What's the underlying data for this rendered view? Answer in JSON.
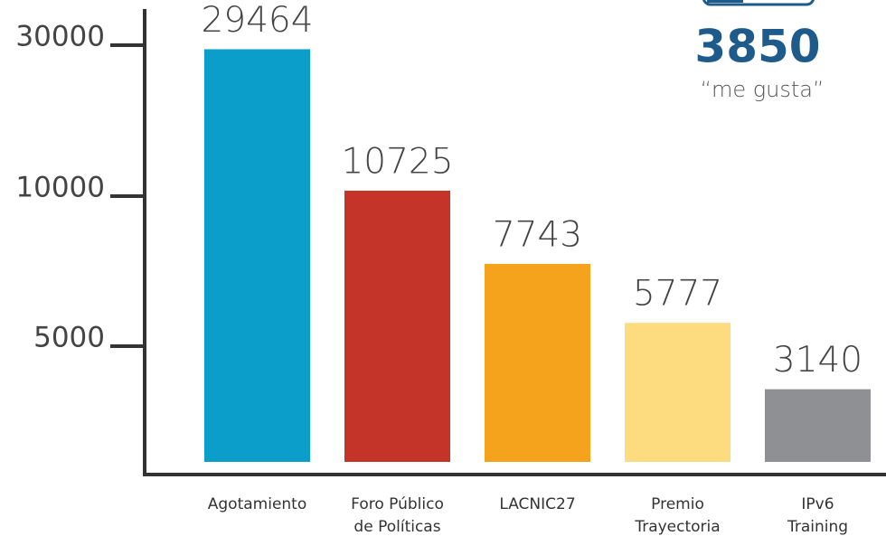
{
  "chart_data": {
    "type": "bar",
    "categories": [
      [
        "Agotamiento"
      ],
      [
        "Foro Público",
        "de Políticas"
      ],
      [
        "LACNIC27"
      ],
      [
        "Premio",
        "Trayectoria"
      ],
      [
        "IPv6",
        "Training"
      ]
    ],
    "values": [
      29464,
      10725,
      7743,
      5777,
      3140
    ],
    "colors": [
      "#0b9ecb",
      "#c43428",
      "#f5a31c",
      "#fcdc7e",
      "#8f9094"
    ],
    "ylim": [
      0,
      30000
    ],
    "yticks": [
      5000,
      10000,
      30000
    ],
    "annotation": {
      "value": "3850",
      "text": "“me gusta”"
    }
  }
}
